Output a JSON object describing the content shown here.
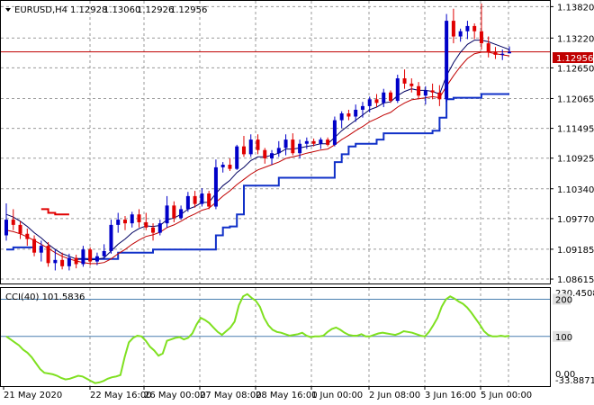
{
  "header": {
    "symbol": "EURUSD,H4",
    "open": "1.12928",
    "high": "1.13060",
    "low": "1.12926",
    "close": "1.12956"
  },
  "current_price_label": "1.12956",
  "colors": {
    "bull": "#0000c8",
    "bear": "#e00000",
    "ma_fast": "#000060",
    "ma_slow": "#c00000",
    "support": "#1030c8",
    "cci": "#7fe020",
    "cci_level": "#4a7fb0",
    "grid": "#9a9a9a"
  },
  "chart_data": [
    {
      "type": "candlestick",
      "title": "EURUSD,H4",
      "y_ticks": [
        "1.13820",
        "1.13220",
        "1.12650",
        "1.12065",
        "1.11495",
        "1.10925",
        "1.10340",
        "1.09770",
        "1.09185",
        "1.08615"
      ],
      "ylim": [
        1.0853,
        1.1393
      ],
      "x_ticks": [
        "21 May 2020",
        "22 May 16:00",
        "26 May 00:00",
        "27 May 08:00",
        "28 May 16:00",
        "1 Jun 00:00",
        "2 Jun 08:00",
        "3 Jun 16:00",
        "5 Jun 00:00"
      ],
      "candles": [
        [
          1.0945,
          1.1006,
          1.0935,
          1.0975
        ],
        [
          1.0975,
          1.0995,
          1.0955,
          1.0965
        ],
        [
          1.0965,
          1.0972,
          1.0938,
          1.0948
        ],
        [
          1.0948,
          1.0958,
          1.0925,
          1.0938
        ],
        [
          1.0938,
          1.0945,
          1.0905,
          1.0912
        ],
        [
          1.0912,
          1.0935,
          1.0895,
          1.0925
        ],
        [
          1.0925,
          1.0932,
          1.0885,
          1.0892
        ],
        [
          1.0892,
          1.0918,
          1.0878,
          1.0898
        ],
        [
          1.0898,
          1.0912,
          1.088,
          1.0886
        ],
        [
          1.0886,
          1.091,
          1.0878,
          1.0902
        ],
        [
          1.0902,
          1.0908,
          1.0882,
          1.089
        ],
        [
          1.089,
          1.0925,
          1.0885,
          1.0918
        ],
        [
          1.0918,
          1.0922,
          1.0888,
          1.0895
        ],
        [
          1.0895,
          1.0912,
          1.0888,
          1.0905
        ],
        [
          1.0905,
          1.0928,
          1.09,
          1.0915
        ],
        [
          1.0915,
          1.0975,
          1.091,
          1.0965
        ],
        [
          1.0965,
          1.0988,
          1.095,
          1.0975
        ],
        [
          1.0975,
          1.0982,
          1.0955,
          1.0968
        ],
        [
          1.0968,
          1.099,
          1.096,
          1.0985
        ],
        [
          1.0985,
          1.0995,
          1.096,
          1.097
        ],
        [
          1.097,
          1.0988,
          1.0955,
          1.096
        ],
        [
          1.096,
          1.0968,
          1.0935,
          1.095
        ],
        [
          1.095,
          1.0975,
          1.0945,
          1.0968
        ],
        [
          1.0968,
          1.102,
          1.096,
          1.1002
        ],
        [
          1.1002,
          1.101,
          1.097,
          1.0978
        ],
        [
          1.0978,
          1.1002,
          1.0975,
          1.0995
        ],
        [
          1.0995,
          1.1028,
          1.099,
          1.102
        ],
        [
          1.102,
          1.103,
          1.0998,
          1.1005
        ],
        [
          1.1005,
          1.1035,
          1.1,
          1.1025
        ],
        [
          1.1025,
          1.103,
          1.0995,
          1.1
        ],
        [
          1.1,
          1.109,
          1.0995,
          1.1075
        ],
        [
          1.1075,
          1.1085,
          1.1065,
          1.108
        ],
        [
          1.108,
          1.1092,
          1.1068,
          1.1072
        ],
        [
          1.1072,
          1.1118,
          1.107,
          1.1115
        ],
        [
          1.1115,
          1.1135,
          1.1095,
          1.11
        ],
        [
          1.11,
          1.1138,
          1.1095,
          1.1128
        ],
        [
          1.1128,
          1.1138,
          1.11,
          1.1108
        ],
        [
          1.1108,
          1.1112,
          1.1082,
          1.1092
        ],
        [
          1.1092,
          1.1108,
          1.108,
          1.1102
        ],
        [
          1.1102,
          1.1125,
          1.1095,
          1.1112
        ],
        [
          1.1112,
          1.1138,
          1.1098,
          1.1128
        ],
        [
          1.1128,
          1.114,
          1.1098,
          1.1102
        ],
        [
          1.1102,
          1.1128,
          1.1092,
          1.112
        ],
        [
          1.112,
          1.1132,
          1.111,
          1.1125
        ],
        [
          1.1125,
          1.113,
          1.1115,
          1.112
        ],
        [
          1.112,
          1.1132,
          1.111,
          1.1128
        ],
        [
          1.1128,
          1.1132,
          1.1115,
          1.1118
        ],
        [
          1.1118,
          1.1172,
          1.1115,
          1.1165
        ],
        [
          1.1165,
          1.1182,
          1.115,
          1.1178
        ],
        [
          1.1178,
          1.1185,
          1.1165,
          1.1172
        ],
        [
          1.1172,
          1.1195,
          1.1162,
          1.1185
        ],
        [
          1.1185,
          1.12,
          1.117,
          1.1192
        ],
        [
          1.1192,
          1.121,
          1.118,
          1.1205
        ],
        [
          1.1205,
          1.1215,
          1.119,
          1.1198
        ],
        [
          1.1198,
          1.1225,
          1.119,
          1.1218
        ],
        [
          1.1218,
          1.1222,
          1.1198,
          1.1202
        ],
        [
          1.1202,
          1.1252,
          1.1198,
          1.1245
        ],
        [
          1.1245,
          1.1262,
          1.1225,
          1.1235
        ],
        [
          1.1235,
          1.1245,
          1.1218,
          1.123
        ],
        [
          1.123,
          1.1238,
          1.1205,
          1.1212
        ],
        [
          1.1212,
          1.123,
          1.1195,
          1.1222
        ],
        [
          1.1222,
          1.1235,
          1.1205,
          1.1218
        ],
        [
          1.1218,
          1.1232,
          1.1192,
          1.1205
        ],
        [
          1.1205,
          1.1368,
          1.12,
          1.1355
        ],
        [
          1.1355,
          1.1378,
          1.1312,
          1.1325
        ],
        [
          1.1325,
          1.134,
          1.1315,
          1.1335
        ],
        [
          1.1335,
          1.1355,
          1.132,
          1.1345
        ],
        [
          1.1345,
          1.135,
          1.132,
          1.1335
        ],
        [
          1.1335,
          1.1388,
          1.13,
          1.1312
        ],
        [
          1.1312,
          1.1325,
          1.1285,
          1.1295
        ],
        [
          1.1295,
          1.1305,
          1.1282,
          1.129
        ],
        [
          1.129,
          1.13,
          1.128,
          1.1292
        ],
        [
          1.12928,
          1.1306,
          1.12926,
          1.12956
        ]
      ],
      "ma_fast": [
        1.0985,
        1.098,
        1.0972,
        1.0962,
        1.095,
        1.094,
        1.0928,
        1.0918,
        1.091,
        1.0905,
        1.09,
        1.09,
        1.0898,
        1.0899,
        1.0902,
        1.0915,
        1.0928,
        1.0938,
        1.095,
        1.0958,
        1.0963,
        1.0962,
        1.0964,
        1.0975,
        1.0978,
        1.0985,
        1.0995,
        1.1,
        1.1008,
        1.1008,
        1.1025,
        1.104,
        1.105,
        1.1065,
        1.1075,
        1.1088,
        1.1095,
        1.1095,
        1.1098,
        1.1102,
        1.111,
        1.111,
        1.1112,
        1.1115,
        1.1117,
        1.112,
        1.112,
        1.1132,
        1.1145,
        1.1155,
        1.1165,
        1.1175,
        1.1185,
        1.119,
        1.1198,
        1.12,
        1.1212,
        1.122,
        1.1225,
        1.1222,
        1.1222,
        1.122,
        1.1215,
        1.125,
        1.1275,
        1.1295,
        1.131,
        1.1318,
        1.1318,
        1.1315,
        1.131,
        1.1305,
        1.13
      ],
      "ma_slow": [
        1.0955,
        1.0952,
        1.0948,
        1.0942,
        1.0935,
        1.0928,
        1.092,
        1.0912,
        1.0905,
        1.09,
        1.0896,
        1.0893,
        1.0891,
        1.0891,
        1.0893,
        1.09,
        1.091,
        1.0918,
        1.0928,
        1.0936,
        1.0943,
        1.0946,
        1.0951,
        1.096,
        1.0965,
        1.0972,
        1.098,
        1.0986,
        1.0993,
        1.0997,
        1.1008,
        1.102,
        1.103,
        1.1042,
        1.1052,
        1.1062,
        1.107,
        1.1075,
        1.108,
        1.1085,
        1.1092,
        1.1095,
        1.1098,
        1.1102,
        1.1105,
        1.1108,
        1.111,
        1.1118,
        1.1128,
        1.1136,
        1.1145,
        1.1153,
        1.1162,
        1.1168,
        1.1175,
        1.118,
        1.119,
        1.1198,
        1.1204,
        1.1206,
        1.1208,
        1.121,
        1.1208,
        1.123,
        1.125,
        1.1268,
        1.1283,
        1.1292,
        1.1295,
        1.1295,
        1.1292,
        1.129,
        1.1288
      ],
      "support": [
        1.0918,
        1.0922,
        1.0922,
        1.0922,
        1.0922,
        null,
        null,
        null,
        null,
        null,
        1.09,
        1.09,
        1.09,
        1.09,
        1.09,
        1.09,
        1.0912,
        1.0912,
        1.0912,
        1.0912,
        1.0912,
        1.0918,
        1.0918,
        1.0918,
        1.0918,
        1.0918,
        1.0918,
        1.0918,
        1.0918,
        1.0918,
        1.0945,
        1.096,
        1.0962,
        1.0985,
        1.104,
        1.104,
        1.104,
        1.104,
        1.104,
        1.1055,
        1.1055,
        1.1055,
        1.1055,
        1.1055,
        1.1055,
        1.1055,
        1.1055,
        1.1085,
        1.11,
        1.1115,
        1.112,
        1.112,
        1.112,
        1.1128,
        1.114,
        1.114,
        1.114,
        1.114,
        1.114,
        1.114,
        1.114,
        1.1145,
        1.117,
        1.1205,
        1.1208,
        1.1208,
        1.1208,
        1.1208,
        1.1215,
        1.1215,
        1.1215,
        1.1215,
        1.1215
      ],
      "resistance": [
        null,
        null,
        null,
        null,
        null,
        1.0995,
        1.0988,
        1.0985,
        1.0985,
        1.0985,
        null,
        null,
        null,
        null,
        null,
        null,
        null,
        null,
        null,
        null,
        null,
        null,
        null,
        null,
        null,
        null,
        null,
        null,
        null,
        null,
        null,
        null,
        null,
        null,
        null,
        null,
        null,
        null,
        null,
        null,
        null,
        null,
        null,
        null,
        null,
        null,
        null,
        null,
        null,
        null,
        null,
        null,
        null,
        null,
        null,
        null,
        null,
        null,
        null,
        null,
        null,
        null,
        null,
        null,
        null,
        null,
        null,
        null,
        null,
        null,
        null,
        null,
        null
      ]
    },
    {
      "type": "line",
      "title": "CCI(40) 101.5836",
      "ylim": [
        -33.8871,
        230.4508
      ],
      "y_ticks": [
        "230.4508",
        "200",
        "100",
        "0.00",
        "-33.8871"
      ],
      "levels": [
        200,
        100
      ],
      "series": [
        {
          "values": [
            100,
            92,
            84,
            76,
            64,
            56,
            44,
            28,
            12,
            2,
            0,
            -2,
            -6,
            -12,
            -16,
            -14,
            -10,
            -6,
            -8,
            -14,
            -20,
            -26,
            -24,
            -20,
            -14,
            -10,
            -8,
            -4,
            44,
            84,
            96,
            102,
            100,
            88,
            72,
            62,
            48,
            54,
            88,
            92,
            96,
            98,
            92,
            96,
            108,
            132,
            150,
            144,
            136,
            124,
            112,
            104,
            114,
            124,
            140,
            184,
            208,
            214,
            204,
            196,
            180,
            150,
            130,
            118,
            112,
            110,
            106,
            102,
            104,
            106,
            110,
            102,
            98,
            100,
            100,
            102,
            112,
            120,
            124,
            118,
            110,
            104,
            102,
            102,
            106,
            100,
            100,
            104,
            108,
            110,
            108,
            106,
            104,
            108,
            114,
            112,
            110,
            106,
            102,
            100,
            112,
            130,
            150,
            180,
            200,
            208,
            202,
            194,
            188,
            178,
            164,
            148,
            132,
            114,
            104,
            100,
            100,
            102,
            100,
            101.58
          ]
        }
      ]
    }
  ]
}
